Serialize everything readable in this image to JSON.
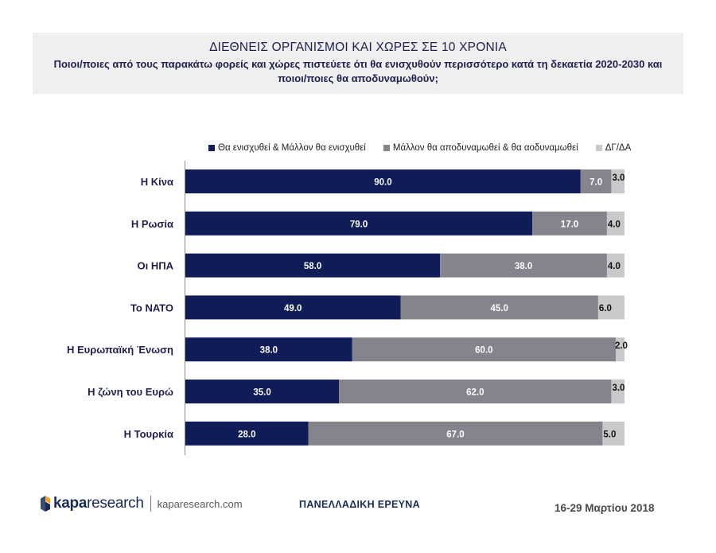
{
  "header": {
    "title": "ΔΙΕΘΝΕΙΣ ΟΡΓΑΝΙΣΜΟΙ ΚΑΙ ΧΩΡΕΣ ΣΕ 10 ΧΡΟΝΙΑ",
    "subtitle": "Ποιοι/ποιες από τους παρακάτω φορείς και χώρες πιστεύετε ότι θα ενισχυθούν περισσότερο κατά τη δεκαετία 2020-2030 και ποιοι/ποιες θα αποδυναμωθούν;"
  },
  "colors": {
    "strengthen": "#0f1c57",
    "weaken": "#83848c",
    "dk": "#c9c9cb",
    "logo_orange": "#f2a31b",
    "logo_blue": "#1a2b57"
  },
  "chart_data": {
    "type": "bar",
    "orientation": "horizontal",
    "stacked": true,
    "categories": [
      "Η Κίνα",
      "Η Ρωσία",
      "Οι ΗΠΑ",
      "Το ΝΑΤΟ",
      "Η Ευρωπαϊκή Ένωση",
      "Η ζώνη του Ευρώ",
      "Η Τουρκία"
    ],
    "series": [
      {
        "name": "Θα ενισχυθεί & Μάλλον θα ενισχυθεί",
        "values": [
          90.0,
          79.0,
          58.0,
          49.0,
          38.0,
          35.0,
          28.0
        ]
      },
      {
        "name": "Μάλλον θα αποδυναμωθεί & θα αοδυναμωθεί",
        "values": [
          7.0,
          17.0,
          38.0,
          45.0,
          60.0,
          62.0,
          67.0
        ]
      },
      {
        "name": "ΔΓ/ΔΑ",
        "values": [
          3.0,
          4.0,
          4.0,
          6.0,
          2.0,
          3.0,
          5.0
        ]
      }
    ],
    "xlim": [
      0,
      100
    ],
    "legend": "top",
    "grid": false
  },
  "footer": {
    "logo_bold": "kapa",
    "logo_light": "research",
    "logo_url": "kaparesearch.com",
    "survey": "ΠΑΝΕΛΛΑΔΙΚΗ ΕΡΕΥΝΑ",
    "date": "16-29 Μαρτίου 2018"
  }
}
